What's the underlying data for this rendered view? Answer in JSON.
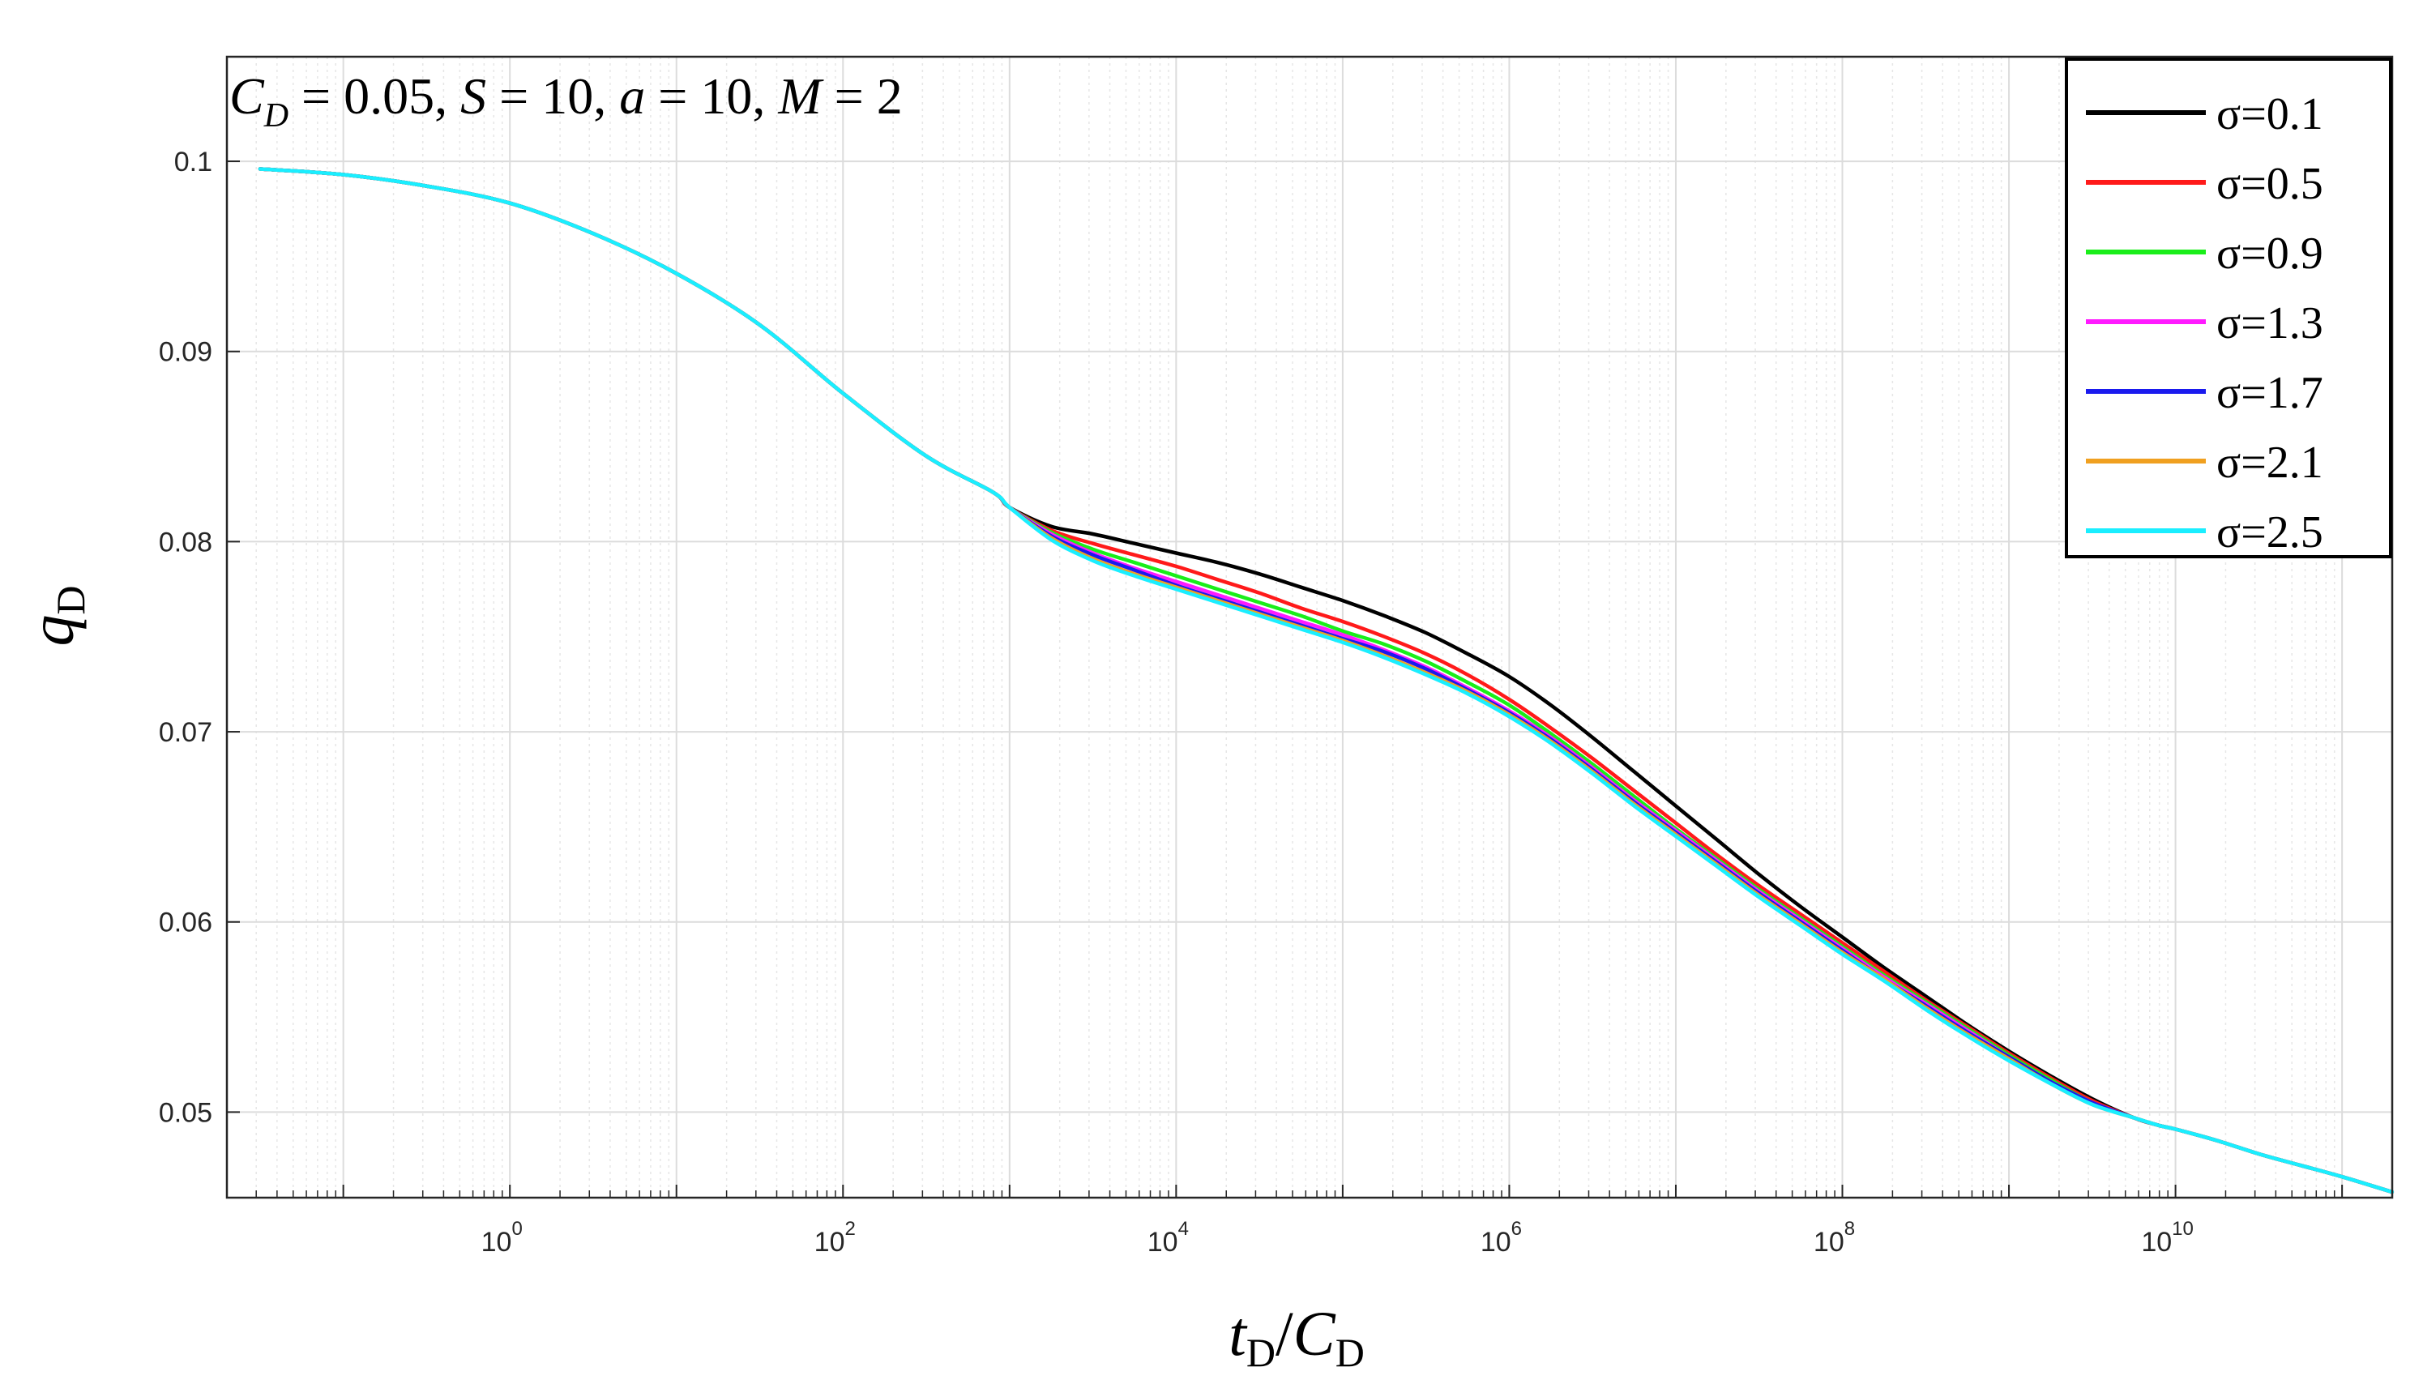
{
  "chart_data": {
    "type": "line",
    "x_scale": "log",
    "xlim": [
      0.02,
      200000000000
    ],
    "ylim": [
      0.0455,
      0.1055
    ],
    "grid": true,
    "annotation": {
      "c": "C",
      "c_sub": "D",
      "text": " = 0.05, ",
      "s": "S",
      "s_val": " = 10, ",
      "a": "a",
      "a_val": " = 10, ",
      "m": "M",
      "m_val": " = 2"
    },
    "ylabel": {
      "main": "q",
      "sub": "D"
    },
    "xlabel": {
      "t": "t",
      "t_sub": "D",
      "slash": "/",
      "c": "C",
      "c_sub": "D"
    },
    "x_ticks": [
      {
        "base": "10",
        "exp": "0",
        "value": 1
      },
      {
        "base": "10",
        "exp": "2",
        "value": 100
      },
      {
        "base": "10",
        "exp": "4",
        "value": 10000
      },
      {
        "base": "10",
        "exp": "6",
        "value": 1000000
      },
      {
        "base": "10",
        "exp": "8",
        "value": 100000000
      },
      {
        "base": "10",
        "exp": "10",
        "value": 10000000000
      }
    ],
    "y_ticks": [
      {
        "label": "0.05",
        "value": 0.05
      },
      {
        "label": "0.06",
        "value": 0.06
      },
      {
        "label": "0.07",
        "value": 0.07
      },
      {
        "label": "0.08",
        "value": 0.08
      },
      {
        "label": "0.09",
        "value": 0.09
      },
      {
        "label": "0.1",
        "value": 0.1
      }
    ],
    "legend_position": "top-right",
    "log10_x": [
      -1.5,
      -1,
      -0.5,
      0,
      0.5,
      1,
      1.5,
      2,
      2.5,
      2.9,
      3,
      3.25,
      3.5,
      3.75,
      4,
      4.25,
      4.5,
      4.75,
      5,
      5.25,
      5.5,
      5.75,
      6,
      6.25,
      6.5,
      6.75,
      7,
      7.25,
      7.5,
      7.75,
      8,
      8.25,
      8.5,
      8.75,
      9,
      9.25,
      9.5,
      9.75,
      9.9,
      10,
      10.25,
      10.5,
      10.75,
      11,
      11.3
    ],
    "series": [
      {
        "name": "σ=0.1",
        "color": "#000000",
        "values": [
          0.0996,
          0.0993,
          0.0987,
          0.0978,
          0.0962,
          0.0941,
          0.0914,
          0.0878,
          0.0845,
          0.0826,
          0.0818,
          0.0808,
          0.0804,
          0.0799,
          0.0794,
          0.0789,
          0.0783,
          0.0776,
          0.0769,
          0.0761,
          0.0752,
          0.0741,
          0.0729,
          0.0714,
          0.0697,
          0.0679,
          0.0661,
          0.0643,
          0.0625,
          0.0608,
          0.0592,
          0.0576,
          0.0561,
          0.0546,
          0.0532,
          0.0519,
          0.0507,
          0.0497,
          0.0493,
          0.0491,
          0.0485,
          0.0478,
          0.0472,
          0.0466,
          0.0458
        ]
      },
      {
        "name": "σ=0.5",
        "color": "#ff1a1a",
        "values": [
          0.0996,
          0.0993,
          0.0987,
          0.0978,
          0.0962,
          0.0941,
          0.0914,
          0.0878,
          0.0845,
          0.0826,
          0.0818,
          0.0806,
          0.0799,
          0.0793,
          0.0787,
          0.078,
          0.0773,
          0.0765,
          0.0758,
          0.075,
          0.0741,
          0.073,
          0.0717,
          0.0702,
          0.0686,
          0.0669,
          0.0652,
          0.0635,
          0.0619,
          0.0604,
          0.0589,
          0.0574,
          0.0559,
          0.0545,
          0.0531,
          0.0518,
          0.0506,
          0.0497,
          0.0493,
          0.0491,
          0.0485,
          0.0478,
          0.0472,
          0.0466,
          0.0458
        ]
      },
      {
        "name": "σ=0.9",
        "color": "#1aee1a",
        "values": [
          0.0996,
          0.0993,
          0.0987,
          0.0978,
          0.0962,
          0.0941,
          0.0914,
          0.0878,
          0.0845,
          0.0826,
          0.0818,
          0.0805,
          0.0796,
          0.0789,
          0.0782,
          0.0775,
          0.0768,
          0.0761,
          0.0753,
          0.0746,
          0.0737,
          0.0726,
          0.0714,
          0.0699,
          0.0683,
          0.0666,
          0.0649,
          0.0633,
          0.0617,
          0.0602,
          0.0587,
          0.0572,
          0.0558,
          0.0544,
          0.053,
          0.0517,
          0.0505,
          0.0497,
          0.0493,
          0.0491,
          0.0485,
          0.0478,
          0.0472,
          0.0466,
          0.0458
        ]
      },
      {
        "name": "σ=1.3",
        "color": "#ff1aff",
        "values": [
          0.0996,
          0.0993,
          0.0987,
          0.0978,
          0.0962,
          0.0941,
          0.0914,
          0.0878,
          0.0845,
          0.0826,
          0.0818,
          0.0804,
          0.0794,
          0.0786,
          0.0779,
          0.0772,
          0.0765,
          0.0758,
          0.0751,
          0.0743,
          0.0734,
          0.0723,
          0.0711,
          0.0697,
          0.0681,
          0.0664,
          0.0648,
          0.0632,
          0.0616,
          0.0601,
          0.0586,
          0.0571,
          0.0557,
          0.0543,
          0.0529,
          0.0516,
          0.0505,
          0.0497,
          0.0493,
          0.0491,
          0.0485,
          0.0478,
          0.0472,
          0.0466,
          0.0458
        ]
      },
      {
        "name": "σ=1.7",
        "color": "#1a1aee",
        "values": [
          0.0996,
          0.0993,
          0.0987,
          0.0978,
          0.0962,
          0.0941,
          0.0914,
          0.0878,
          0.0845,
          0.0826,
          0.0818,
          0.0803,
          0.0793,
          0.0785,
          0.0777,
          0.077,
          0.0763,
          0.0756,
          0.0749,
          0.0742,
          0.0733,
          0.0722,
          0.071,
          0.0696,
          0.068,
          0.0663,
          0.0647,
          0.0631,
          0.0615,
          0.06,
          0.0585,
          0.057,
          0.0556,
          0.0542,
          0.0529,
          0.0516,
          0.0505,
          0.0497,
          0.0493,
          0.0491,
          0.0485,
          0.0478,
          0.0472,
          0.0466,
          0.0458
        ]
      },
      {
        "name": "σ=2.1",
        "color": "#f0a020",
        "values": [
          0.0996,
          0.0993,
          0.0987,
          0.0978,
          0.0962,
          0.0941,
          0.0914,
          0.0878,
          0.0845,
          0.0826,
          0.0818,
          0.0802,
          0.0791,
          0.0783,
          0.0776,
          0.0769,
          0.0762,
          0.0755,
          0.0748,
          0.074,
          0.0731,
          0.0721,
          0.0709,
          0.0695,
          0.0679,
          0.0662,
          0.0646,
          0.063,
          0.0614,
          0.0599,
          0.0584,
          0.057,
          0.0555,
          0.0541,
          0.0528,
          0.0515,
          0.0504,
          0.0497,
          0.0493,
          0.0491,
          0.0485,
          0.0478,
          0.0472,
          0.0466,
          0.0458
        ]
      },
      {
        "name": "σ=2.5",
        "color": "#1aeeff",
        "values": [
          0.0996,
          0.0993,
          0.0987,
          0.0978,
          0.0962,
          0.0941,
          0.0914,
          0.0878,
          0.0845,
          0.0826,
          0.0818,
          0.0801,
          0.079,
          0.0782,
          0.0775,
          0.0768,
          0.0761,
          0.0754,
          0.0747,
          0.0739,
          0.073,
          0.072,
          0.0708,
          0.0694,
          0.0678,
          0.0661,
          0.0645,
          0.0629,
          0.0613,
          0.0598,
          0.0583,
          0.0569,
          0.0554,
          0.054,
          0.0527,
          0.0515,
          0.0504,
          0.0497,
          0.0493,
          0.0491,
          0.0485,
          0.0478,
          0.0472,
          0.0466,
          0.0458
        ]
      }
    ]
  }
}
